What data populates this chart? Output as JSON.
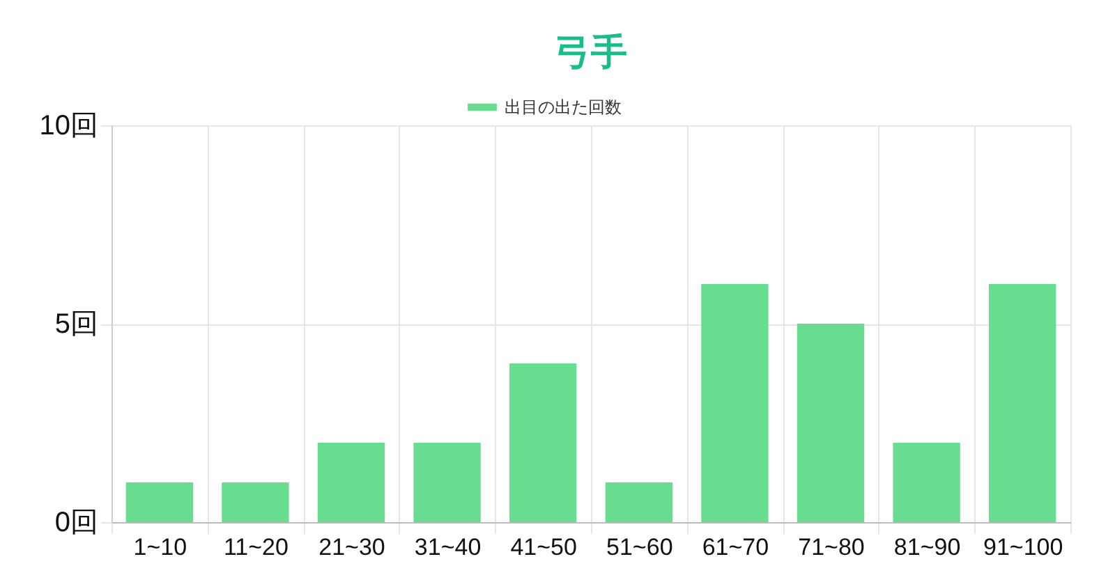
{
  "chart_data": {
    "type": "bar",
    "title": "弓手",
    "categories": [
      "1~10",
      "11~20",
      "21~30",
      "31~40",
      "41~50",
      "51~60",
      "61~70",
      "71~80",
      "81~90",
      "91~100"
    ],
    "series": [
      {
        "name": "出目の出た回数",
        "color": "#68dc8f",
        "values": [
          1,
          1,
          2,
          2,
          4,
          1,
          6,
          5,
          2,
          6
        ]
      }
    ],
    "ylim": [
      0,
      10
    ],
    "yticks": [
      {
        "value": 0,
        "label": "0回"
      },
      {
        "value": 5,
        "label": "5回"
      },
      {
        "value": 10,
        "label": "10回"
      }
    ],
    "grid": true,
    "legend": "top"
  }
}
